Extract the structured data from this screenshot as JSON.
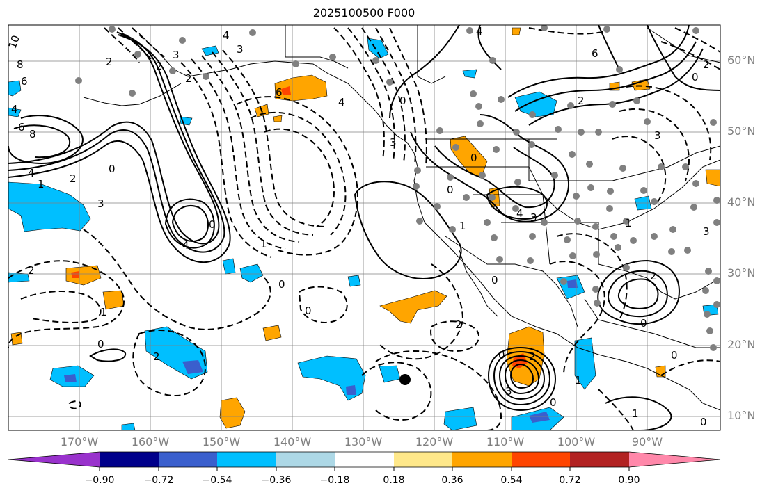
{
  "title": "2025100500 F000",
  "lat_labels": [
    "60°N",
    "50°N",
    "40°N",
    "30°N",
    "20°N",
    "10°N"
  ],
  "lon_labels": [
    "170°W",
    "160°W",
    "150°W",
    "140°W",
    "130°W",
    "120°W",
    "110°W",
    "100°W",
    "90°W"
  ],
  "colorbar": {
    "colors": [
      "#9932cc",
      "#00008b",
      "#3a5fcd",
      "#00bfff",
      "#add8e6",
      "#ffffff",
      "#ffe88a",
      "#ffa500",
      "#ff4500",
      "#b22222",
      "#ff88aa"
    ],
    "tick_labels": [
      "−0.90",
      "−0.72",
      "−0.54",
      "−0.36",
      "−0.18",
      "0.18",
      "0.36",
      "0.54",
      "0.72",
      "0.90"
    ]
  },
  "contour_labels": [
    "10",
    "8",
    "6",
    "4",
    "8",
    "6",
    "4",
    "3",
    "2",
    "1",
    "4",
    "0",
    "3",
    "2",
    "2",
    "4",
    "3",
    "2",
    "1",
    "0",
    "6",
    "4",
    "3",
    "2",
    "0",
    "0",
    "4",
    "6",
    "0",
    "2",
    "4",
    "3",
    "0",
    "0",
    "2",
    "0",
    "0",
    "0",
    "2",
    "2",
    "1",
    "0",
    "2",
    "3",
    "1",
    "0",
    "0",
    "1",
    "0",
    "3",
    "0",
    "1",
    "3",
    "2",
    "1"
  ]
}
